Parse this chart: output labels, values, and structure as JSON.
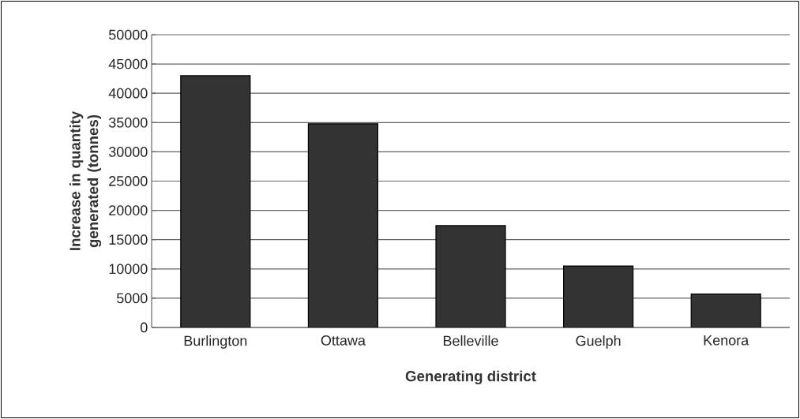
{
  "chart_data": {
    "type": "bar",
    "categories": [
      "Burlington",
      "Ottawa",
      "Belleville",
      "Guelph",
      "Kenora"
    ],
    "values": [
      43000,
      34800,
      17400,
      10500,
      5700
    ],
    "color": "#333333",
    "xlabel": "Generating district",
    "ylabel": "Increase in quantity generated (tonnes)",
    "ylim": [
      0,
      50000
    ],
    "yticks": [
      0,
      5000,
      10000,
      15000,
      20000,
      25000,
      30000,
      35000,
      40000,
      45000,
      50000
    ],
    "grid": "y"
  }
}
